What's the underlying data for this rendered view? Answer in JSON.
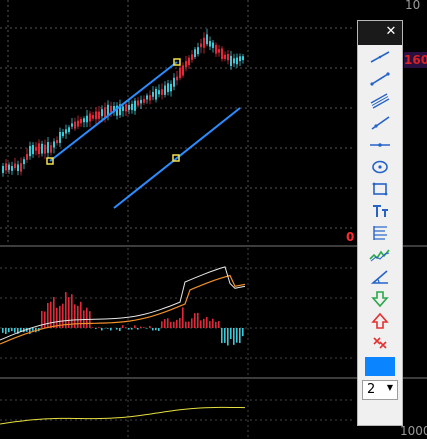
{
  "axis": {
    "top_right": "10",
    "bottom_right": "1000"
  },
  "price_tag": "160",
  "zero_label": "0",
  "toolbox": {
    "close_label": "✕",
    "tools": [
      {
        "name": "trend-line-tool",
        "icon": "trend-line-icon"
      },
      {
        "name": "line-segment-tool",
        "icon": "segment-icon"
      },
      {
        "name": "parallel-channel-tool",
        "icon": "parallel-lines-icon"
      },
      {
        "name": "ray-tool",
        "icon": "ray-icon"
      },
      {
        "name": "horizontal-line-tool",
        "icon": "horizontal-line-icon"
      },
      {
        "name": "ellipse-tool",
        "icon": "ellipse-icon"
      },
      {
        "name": "rectangle-tool",
        "icon": "rectangle-icon"
      },
      {
        "name": "text-tool",
        "icon": "text-icon"
      },
      {
        "name": "fibonacci-tool",
        "icon": "fibonacci-icon"
      },
      {
        "name": "pattern-tool",
        "icon": "zigzag-icon"
      },
      {
        "name": "angle-tool",
        "icon": "angle-icon"
      },
      {
        "name": "down-arrow-tool",
        "icon": "arrow-down-icon"
      },
      {
        "name": "up-arrow-tool",
        "icon": "arrow-up-icon"
      },
      {
        "name": "delete-drawings-tool",
        "icon": "cross-icon"
      }
    ],
    "color": "#0a84ff",
    "line_width": "2"
  },
  "colors": {
    "bull_candle": "#3fc7d6",
    "bear_candle": "#e0283a",
    "channel": "#2b8cff",
    "macd_line": "#e8e8e8",
    "signal_line": "#f0902a",
    "bottom_line": "#e6e040"
  }
}
